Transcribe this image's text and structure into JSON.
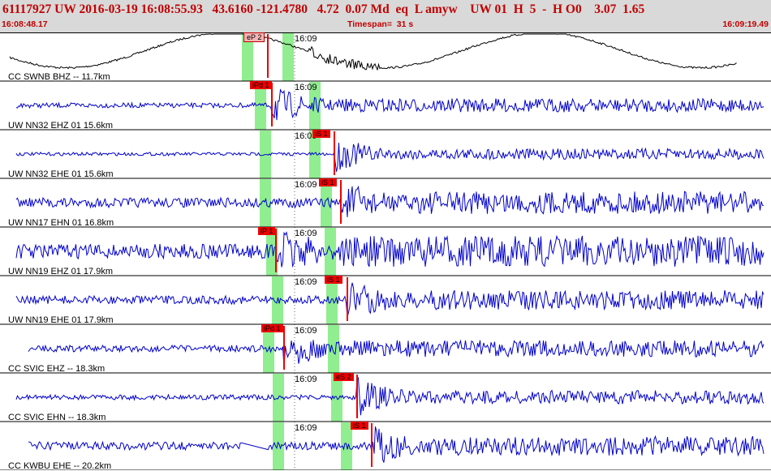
{
  "header": {
    "title": "61117927 UW 2016-03-19 16:08:55.93   43.6160 -121.4780   4.72  0.07 Md  eq  L amyw    UW 01  H  5  -  H O0    3.07  1.65",
    "start_time": "16:08:48.17",
    "timespan": "Timespan=  31 s",
    "end_time": "16:09:19.49"
  },
  "colors": {
    "header_bg": "#d9d9d9",
    "header_text": "#c00000",
    "waveform": "#0000cc",
    "waveform_first": "#000000",
    "pick": "#ee0000",
    "pick_window": "#90ee90"
  },
  "traces": [
    {
      "label": "CC SWNB BHZ -- 11.7km",
      "minute": "16:09",
      "pick": "eP 2",
      "pick_style": "pink",
      "wave": "sine",
      "color": "black"
    },
    {
      "label": "UW NN32 EHZ 01 15.6km",
      "minute": "16:09",
      "pick": "iPd 1",
      "pick_style": "red",
      "wave": "noise",
      "color": "blue"
    },
    {
      "label": "UW NN32 EHE 01 15.6km",
      "minute": "16:09",
      "pick": "iS 1",
      "pick_style": "red",
      "wave": "noise",
      "color": "blue"
    },
    {
      "label": "UW NN17 EHN 01 16.8km",
      "minute": "16:09",
      "pick": "iS 1",
      "pick_style": "red",
      "wave": "noise",
      "color": "blue"
    },
    {
      "label": "UW NN19 EHZ 01 17.9km",
      "minute": "16:09",
      "pick": "iP 1",
      "pick_style": "red",
      "wave": "noise",
      "color": "blue"
    },
    {
      "label": "UW NN19 EHE 01 17.9km",
      "minute": "16:09",
      "pick": "iS 1",
      "pick_style": "red",
      "wave": "noise",
      "color": "blue"
    },
    {
      "label": "CC SVIC EHZ -- 18.3km",
      "minute": "16:09",
      "pick": "iPd 1",
      "pick_style": "red",
      "wave": "noise",
      "color": "blue"
    },
    {
      "label": "CC SVIC EHN -- 18.3km",
      "minute": "16:09",
      "pick": "eS 2",
      "pick_style": "red",
      "wave": "noise",
      "color": "blue"
    },
    {
      "label": "CC KWBU EHE -- 20.2km",
      "minute": "16:09",
      "pick": "iS 1",
      "pick_style": "red",
      "wave": "noise",
      "color": "blue"
    }
  ]
}
